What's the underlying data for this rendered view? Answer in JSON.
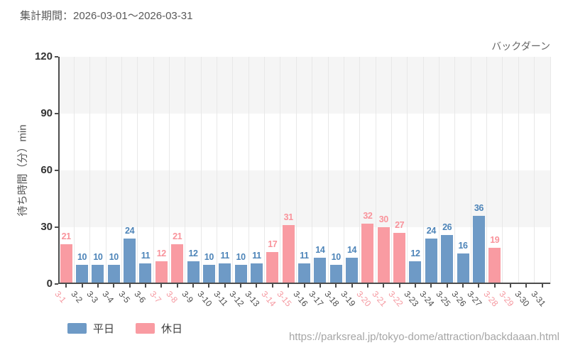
{
  "header": {
    "period_label": "集計期間：2026-03-01～2026-03-31"
  },
  "attraction_name": "バックダーン",
  "axes": {
    "y_label": "待ち時間（分）min"
  },
  "legend": {
    "items": [
      {
        "label": "平日",
        "color": "#6e9ac6"
      },
      {
        "label": "休日",
        "color": "#f99ba2"
      }
    ]
  },
  "footer": {
    "source_url": "https://parksreal.jp/tokyo-dome/attraction/backdaaan.html"
  },
  "colors": {
    "weekday_bar": "#6e9ac6",
    "weekday_value_label": "#4d84b8",
    "holiday_bar": "#f99ba2",
    "holiday_value_label": "#f9939b",
    "weekday_tick_label": "#4d4d4d",
    "holiday_tick_label": "#f598a0",
    "axis": "#4d4d4d",
    "band": "#f5f5f5",
    "vgrid": "#e8e8e8",
    "ytick_text": "#333333",
    "title_text": "#595959",
    "url_text": "#a6a6a6"
  },
  "chart_data": {
    "type": "bar",
    "title": "バックダーン",
    "xlabel": "",
    "ylabel": "待ち時間（分）min",
    "ylim": [
      0,
      120
    ],
    "yticks": [
      0,
      30,
      60,
      90,
      120
    ],
    "unit": "min",
    "grid": "alternating horizontal bands (30-60, 90-120 shaded) + vertical category gridlines",
    "legend_position": "bottom-left",
    "legend_entries": [
      "平日",
      "休日"
    ],
    "categories": [
      "3-1",
      "3-2",
      "3-3",
      "3-4",
      "3-5",
      "3-6",
      "3-7",
      "3-8",
      "3-9",
      "3-10",
      "3-11",
      "3-12",
      "3-13",
      "3-14",
      "3-15",
      "3-16",
      "3-17",
      "3-18",
      "3-19",
      "3-20",
      "3-21",
      "3-22",
      "3-23",
      "3-24",
      "3-25",
      "3-26",
      "3-27",
      "3-28",
      "3-29",
      "3-30",
      "3-31"
    ],
    "values": [
      21,
      10,
      10,
      10,
      24,
      11,
      12,
      21,
      12,
      10,
      11,
      10,
      11,
      17,
      31,
      11,
      14,
      10,
      14,
      32,
      30,
      27,
      12,
      24,
      26,
      16,
      36,
      19,
      null,
      null,
      null
    ],
    "day_type": [
      "holiday",
      "weekday",
      "weekday",
      "weekday",
      "weekday",
      "weekday",
      "holiday",
      "holiday",
      "weekday",
      "weekday",
      "weekday",
      "weekday",
      "weekday",
      "holiday",
      "holiday",
      "weekday",
      "weekday",
      "weekday",
      "weekday",
      "holiday",
      "holiday",
      "holiday",
      "weekday",
      "weekday",
      "weekday",
      "weekday",
      "weekday",
      "holiday",
      "holiday",
      "weekday",
      "weekday"
    ],
    "series": [
      {
        "name": "平日",
        "color": "#6e9ac6"
      },
      {
        "name": "休日",
        "color": "#f99ba2"
      }
    ]
  }
}
